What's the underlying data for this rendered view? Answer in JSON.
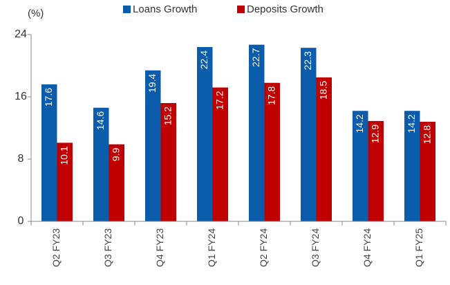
{
  "chart_data": {
    "type": "bar",
    "y_label": "(%)",
    "categories": [
      "Q2 FY23",
      "Q3 FY23",
      "Q4 FY23",
      "Q1 FY24",
      "Q2 FY24",
      "Q3 FY24",
      "Q4 FY24",
      "Q1 FY25"
    ],
    "series": [
      {
        "name": "Loans Growth",
        "color": "#0b5cab",
        "values": [
          17.6,
          14.6,
          19.4,
          22.4,
          22.7,
          22.3,
          14.2,
          14.2
        ]
      },
      {
        "name": "Deposits Growth",
        "color": "#c00000",
        "values": [
          10.1,
          9.9,
          15.2,
          17.2,
          17.8,
          18.5,
          12.9,
          12.8
        ]
      }
    ],
    "ylim": [
      0,
      24
    ],
    "yticks": [
      0,
      8,
      16,
      24
    ],
    "grid": false,
    "legend": "top"
  }
}
